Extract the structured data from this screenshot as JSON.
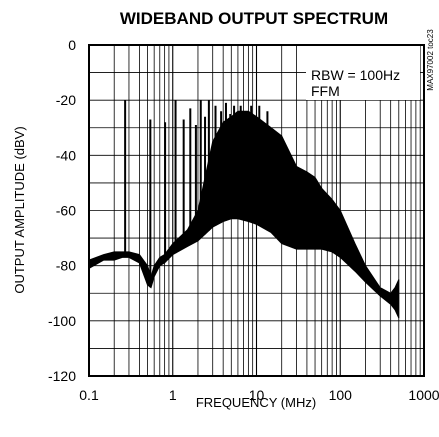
{
  "chart_data": {
    "type": "line",
    "title": "WIDEBAND OUTPUT SPECTRUM",
    "xlabel": "FREQUENCY (MHz)",
    "ylabel": "OUTPUT AMPLITUDE (dBV)",
    "x_scale": "log",
    "xlim": [
      0.1,
      1000
    ],
    "ylim": [
      -120,
      0
    ],
    "x_ticks": [
      "0.1",
      "1",
      "10",
      "100",
      "1000"
    ],
    "y_ticks": [
      "0",
      "-20",
      "-40",
      "-60",
      "-80",
      "-100",
      "-120"
    ],
    "grid": true,
    "legend_lines": [
      "RBW = 100Hz",
      "FFM"
    ],
    "legend_position": "top-right",
    "side_label": "MAX97002 toc23",
    "line_color": "#000000",
    "series": [
      {
        "x": [
          0.1,
          0.15,
          0.2,
          0.25,
          0.3,
          0.4,
          0.5,
          0.55,
          0.6,
          0.7,
          0.8,
          1.0,
          1.5,
          2.0,
          3.0,
          4.0,
          5.0,
          6.0,
          8.0,
          10,
          15,
          20,
          30,
          40,
          50,
          60,
          80,
          100,
          150,
          200,
          300,
          400,
          450,
          500
        ],
        "y": [
          -81,
          -78,
          -78,
          -77,
          -77,
          -79,
          -87,
          -88,
          -84,
          -80,
          -79,
          -76,
          -73,
          -71,
          -66,
          -64,
          -63,
          -63,
          -64,
          -65,
          -68,
          -72,
          -74,
          -74,
          -74,
          -74,
          -75,
          -77,
          -82,
          -86,
          -91,
          -94,
          -96,
          -99
        ]
      },
      {
        "x": [
          0.1,
          0.15,
          0.2,
          0.25,
          0.3,
          0.4,
          0.5,
          0.55,
          0.6,
          0.7,
          0.8,
          1.0,
          1.5,
          2.0,
          3.0,
          4.0,
          5.0,
          6.0,
          8.0,
          10,
          15,
          20,
          30,
          40,
          50,
          60,
          80,
          100,
          150,
          200,
          300,
          400,
          450,
          500
        ],
        "y": [
          -78,
          -76,
          -75,
          -75,
          -75,
          -76,
          -80,
          -84,
          -80,
          -77,
          -76,
          -72,
          -67,
          -60,
          -35,
          -28,
          -26,
          -24,
          -24,
          -26,
          -30,
          -33,
          -44,
          -46,
          -48,
          -52,
          -56,
          -60,
          -72,
          -80,
          -88,
          -90,
          -88,
          -85
        ]
      }
    ],
    "spurs": {
      "x": [
        0.27,
        0.54,
        0.81,
        1.08,
        1.35,
        1.62,
        1.89,
        2.16,
        2.43,
        2.7,
        3.24,
        3.78,
        4.32,
        4.86,
        5.4,
        6.48,
        7.56,
        8.64,
        10.8,
        13.5
      ],
      "y": [
        -20,
        -27,
        -28,
        -20,
        -27,
        -23,
        -29,
        -20,
        -26,
        -20,
        -22,
        -24,
        -21,
        -25,
        -22,
        -22,
        -24,
        -22,
        -22,
        -24
      ]
    }
  }
}
